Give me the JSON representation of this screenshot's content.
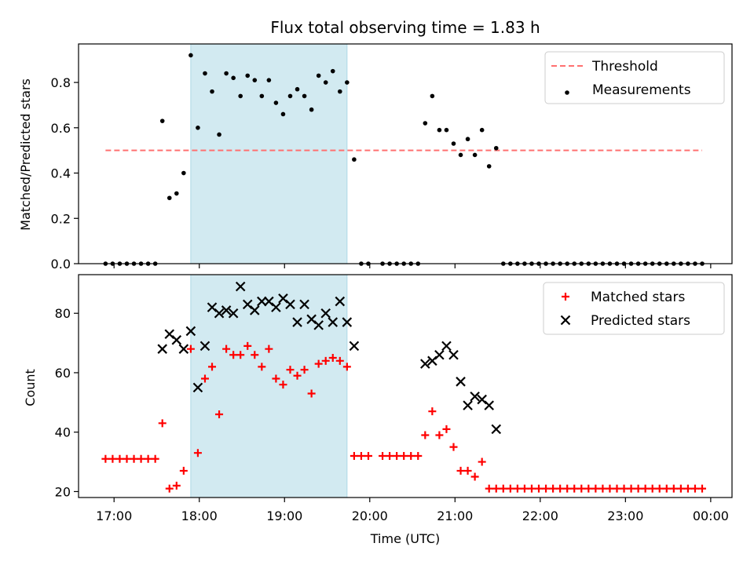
{
  "chart_data": {
    "title": "Flux total observing time = 1.83 h",
    "xlabel": "Time (UTC)",
    "x_tick_labels": [
      "17:00",
      "18:00",
      "19:00",
      "20:00",
      "21:00",
      "22:00",
      "23:00",
      "00:00"
    ],
    "shaded_region": {
      "x": [
        "17:54",
        "19:44"
      ],
      "color": "#add8e6"
    },
    "panels": [
      {
        "type": "scatter",
        "ylabel": "Matched/Predicted stars",
        "ylim": [
          0,
          0.97
        ],
        "y_tick_labels": [
          "0.0",
          "0.2",
          "0.4",
          "0.6",
          "0.8"
        ],
        "legend_position": "top-right",
        "series": [
          {
            "name": "Threshold",
            "style": "dashed-line",
            "color": "#ff7070",
            "x": [
              "16:54",
              "23:54"
            ],
            "y": [
              0.5,
              0.5
            ]
          },
          {
            "name": "Measurements",
            "style": "dot",
            "color": "#000000",
            "x": [
              "16:54",
              "16:59",
              "17:04",
              "17:09",
              "17:14",
              "17:19",
              "17:24",
              "17:29",
              "17:34",
              "17:39",
              "17:44",
              "17:49",
              "17:54",
              "17:59",
              "18:04",
              "18:09",
              "18:14",
              "18:19",
              "18:24",
              "18:29",
              "18:34",
              "18:39",
              "18:44",
              "18:49",
              "18:54",
              "18:59",
              "19:04",
              "19:09",
              "19:14",
              "19:19",
              "19:24",
              "19:29",
              "19:34",
              "19:39",
              "19:44",
              "19:49",
              "19:54",
              "19:59",
              "20:09",
              "20:14",
              "20:19",
              "20:24",
              "20:29",
              "20:34",
              "20:39",
              "20:44",
              "20:49",
              "20:54",
              "20:59",
              "21:04",
              "21:09",
              "21:14",
              "21:19",
              "21:24",
              "21:29",
              "21:34",
              "21:39",
              "21:44",
              "21:49",
              "21:54",
              "21:59",
              "22:04",
              "22:09",
              "22:14",
              "22:19",
              "22:24",
              "22:29",
              "22:34",
              "22:39",
              "22:44",
              "22:49",
              "22:54",
              "22:59",
              "23:04",
              "23:09",
              "23:14",
              "23:19",
              "23:24",
              "23:29",
              "23:34",
              "23:39",
              "23:44",
              "23:49",
              "23:54"
            ],
            "y": [
              0,
              0,
              0,
              0,
              0,
              0,
              0,
              0,
              0.63,
              0.29,
              0.31,
              0.4,
              0.92,
              0.6,
              0.84,
              0.76,
              0.57,
              0.84,
              0.82,
              0.74,
              0.83,
              0.81,
              0.74,
              0.81,
              0.71,
              0.66,
              0.74,
              0.77,
              0.74,
              0.68,
              0.83,
              0.8,
              0.85,
              0.76,
              0.8,
              0.46,
              0,
              0,
              0,
              0,
              0,
              0,
              0,
              0,
              0.62,
              0.74,
              0.59,
              0.59,
              0.53,
              0.48,
              0.55,
              0.48,
              0.59,
              0.43,
              0.51,
              0,
              0,
              0,
              0,
              0,
              0,
              0,
              0,
              0,
              0,
              0,
              0,
              0,
              0,
              0,
              0,
              0,
              0,
              0,
              0,
              0,
              0,
              0,
              0,
              0,
              0,
              0,
              0,
              0
            ]
          }
        ]
      },
      {
        "type": "scatter",
        "ylabel": "Count",
        "ylim": [
          18,
          93
        ],
        "y_tick_labels": [
          "20",
          "40",
          "60",
          "80"
        ],
        "legend_position": "top-right",
        "series": [
          {
            "name": "Matched stars",
            "style": "plus",
            "color": "#ff0000",
            "x": [
              "16:54",
              "16:59",
              "17:04",
              "17:09",
              "17:14",
              "17:19",
              "17:24",
              "17:29",
              "17:34",
              "17:39",
              "17:44",
              "17:49",
              "17:54",
              "17:59",
              "18:04",
              "18:09",
              "18:14",
              "18:19",
              "18:24",
              "18:29",
              "18:34",
              "18:39",
              "18:44",
              "18:49",
              "18:54",
              "18:59",
              "19:04",
              "19:09",
              "19:14",
              "19:19",
              "19:24",
              "19:29",
              "19:34",
              "19:39",
              "19:44",
              "19:49",
              "19:54",
              "19:59",
              "20:09",
              "20:14",
              "20:19",
              "20:24",
              "20:29",
              "20:34",
              "20:39",
              "20:44",
              "20:49",
              "20:54",
              "20:59",
              "21:04",
              "21:09",
              "21:14",
              "21:19",
              "21:24",
              "21:29",
              "21:34",
              "21:39",
              "21:44",
              "21:49",
              "21:54",
              "21:59",
              "22:04",
              "22:09",
              "22:14",
              "22:19",
              "22:24",
              "22:29",
              "22:34",
              "22:39",
              "22:44",
              "22:49",
              "22:54",
              "22:59",
              "23:04",
              "23:09",
              "23:14",
              "23:19",
              "23:24",
              "23:29",
              "23:34",
              "23:39",
              "23:44",
              "23:49",
              "23:54"
            ],
            "y": [
              31,
              31,
              31,
              31,
              31,
              31,
              31,
              31,
              43,
              21,
              22,
              27,
              68,
              33,
              58,
              62,
              46,
              68,
              66,
              66,
              69,
              66,
              62,
              68,
              58,
              56,
              61,
              59,
              61,
              53,
              63,
              64,
              65,
              64,
              62,
              32,
              32,
              32,
              32,
              32,
              32,
              32,
              32,
              32,
              39,
              47,
              39,
              41,
              35,
              27,
              27,
              25,
              30,
              21,
              21,
              21,
              21,
              21,
              21,
              21,
              21,
              21,
              21,
              21,
              21,
              21,
              21,
              21,
              21,
              21,
              21,
              21,
              21,
              21,
              21,
              21,
              21,
              21,
              21,
              21,
              21,
              21,
              21,
              21
            ]
          },
          {
            "name": "Predicted stars",
            "style": "x",
            "color": "#000000",
            "x": [
              "17:34",
              "17:39",
              "17:44",
              "17:49",
              "17:54",
              "17:59",
              "18:04",
              "18:09",
              "18:14",
              "18:19",
              "18:24",
              "18:29",
              "18:34",
              "18:39",
              "18:44",
              "18:49",
              "18:54",
              "18:59",
              "19:04",
              "19:09",
              "19:14",
              "19:19",
              "19:24",
              "19:29",
              "19:34",
              "19:39",
              "19:44",
              "19:49",
              "20:39",
              "20:44",
              "20:49",
              "20:54",
              "20:59",
              "21:04",
              "21:09",
              "21:14",
              "21:19",
              "21:24",
              "21:29"
            ],
            "y": [
              68,
              73,
              71,
              68,
              74,
              55,
              69,
              82,
              80,
              81,
              80,
              89,
              83,
              81,
              84,
              84,
              82,
              85,
              83,
              77,
              83,
              78,
              76,
              80,
              77,
              84,
              77,
              69,
              63,
              64,
              66,
              69,
              66,
              57,
              49,
              52,
              51,
              49,
              41
            ]
          }
        ]
      }
    ]
  }
}
